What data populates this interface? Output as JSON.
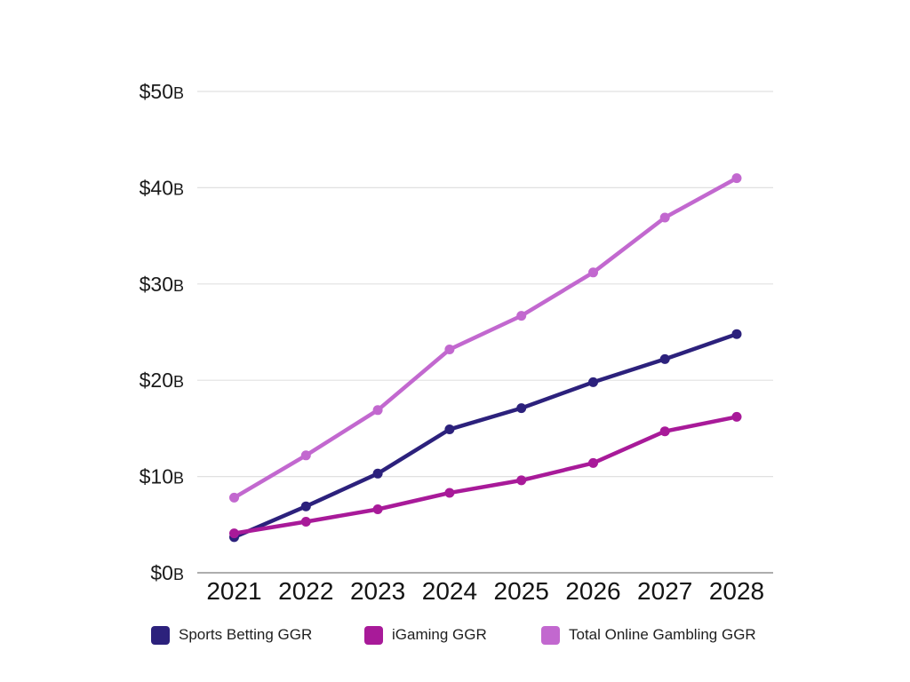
{
  "chart_data": {
    "type": "line",
    "title": "",
    "categories": [
      "2021",
      "2022",
      "2023",
      "2024",
      "2025",
      "2026",
      "2027",
      "2028"
    ],
    "series": [
      {
        "name": "Sports Betting GGR",
        "color": "#2c217c",
        "values": [
          3.7,
          6.9,
          10.3,
          14.9,
          17.1,
          19.8,
          22.2,
          24.8
        ]
      },
      {
        "name": "iGaming GGR",
        "color": "#a81a99",
        "values": [
          4.1,
          5.3,
          6.6,
          8.3,
          9.6,
          11.4,
          14.7,
          16.2
        ]
      },
      {
        "name": "Total Online Gambling GGR",
        "color": "#c268cf",
        "values": [
          7.8,
          12.2,
          16.9,
          23.2,
          26.7,
          31.2,
          36.9,
          41.0
        ]
      }
    ],
    "y_ticks": [
      "$0B",
      "$10B",
      "$20B",
      "$30B",
      "$40B",
      "$50B"
    ],
    "ylim": [
      0,
      50
    ],
    "grid": true,
    "legend_position": "bottom",
    "colors": {
      "grid_line": "#e0e0e0",
      "axis_line": "#adadad",
      "tick_text": "#1a1a1a"
    }
  }
}
